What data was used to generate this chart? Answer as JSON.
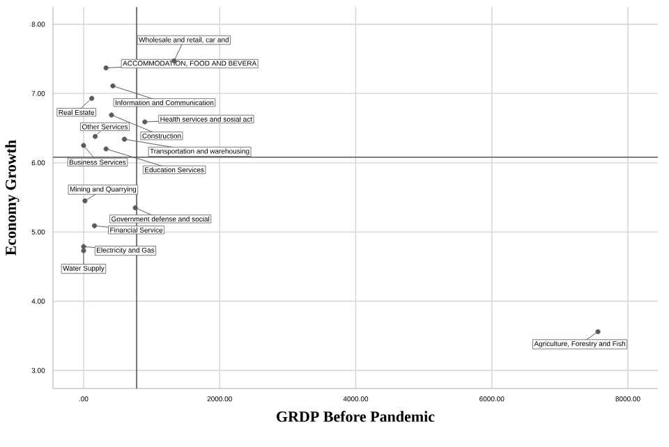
{
  "chart_data": {
    "type": "scatter",
    "xlabel": "GRDP Before Pandemic",
    "ylabel": "Economy Growth",
    "xlim": [
      -450,
      8440
    ],
    "ylim": [
      2.74,
      8.25
    ],
    "xticks": [
      {
        "value": 0,
        "label": ".00"
      },
      {
        "value": 2000,
        "label": "2000.00"
      },
      {
        "value": 4000,
        "label": "4000.00"
      },
      {
        "value": 6000,
        "label": "6000.00"
      },
      {
        "value": 8000,
        "label": "8000.00"
      }
    ],
    "yticks": [
      {
        "value": 3,
        "label": "3.00"
      },
      {
        "value": 4,
        "label": "4.00"
      },
      {
        "value": 5,
        "label": "5.00"
      },
      {
        "value": 6,
        "label": "6.00"
      },
      {
        "value": 7,
        "label": "7.00"
      },
      {
        "value": 8,
        "label": "8.00"
      }
    ],
    "grid": true,
    "marker": "circle",
    "series": [
      {
        "color": "#5a5a5a",
        "x": [
          1330,
          330,
          430,
          120,
          410,
          900,
          170,
          600,
          0,
          330,
          20,
          760,
          160,
          0,
          0,
          7560
        ],
        "values": [
          7.47,
          7.37,
          7.11,
          6.93,
          6.69,
          6.59,
          6.38,
          6.34,
          6.25,
          6.2,
          5.45,
          5.35,
          5.09,
          4.79,
          4.73,
          3.56
        ]
      }
    ],
    "ref_lines": [
      {
        "axis": "x",
        "value": 780,
        "color": "#555555"
      },
      {
        "axis": "y",
        "value": 6.08,
        "color": "#555555"
      }
    ],
    "annotations": [
      {
        "text": "Wholesale and retail, car and",
        "x": 1330,
        "y": 7.47
      },
      {
        "text": "ACCOMMODATION, FOOD AND BEVERA",
        "x": 330,
        "y": 7.37
      },
      {
        "text": "Information and Communication",
        "x": 430,
        "y": 7.11
      },
      {
        "text": "Real Estate",
        "x": 120,
        "y": 6.93
      },
      {
        "text": "Construction",
        "x": 410,
        "y": 6.69
      },
      {
        "text": "Health services and sosial act",
        "x": 900,
        "y": 6.59
      },
      {
        "text": "Other Services",
        "x": 170,
        "y": 6.38
      },
      {
        "text": "Transportation and warehousing",
        "x": 600,
        "y": 6.34
      },
      {
        "text": "Business Services",
        "x": 0,
        "y": 6.25
      },
      {
        "text": "Education  Services",
        "x": 330,
        "y": 6.2
      },
      {
        "text": "Mining and Quarrying",
        "x": 20,
        "y": 5.45
      },
      {
        "text": "Government defense and social",
        "x": 760,
        "y": 5.35
      },
      {
        "text": "Financial Service",
        "x": 160,
        "y": 5.09
      },
      {
        "text": "Electricity and Gas",
        "x": 0,
        "y": 4.79
      },
      {
        "text": "Water Supply",
        "x": 0,
        "y": 4.73
      },
      {
        "text": "Agriculture, Forestry and Fish",
        "x": 7560,
        "y": 3.56
      }
    ]
  }
}
